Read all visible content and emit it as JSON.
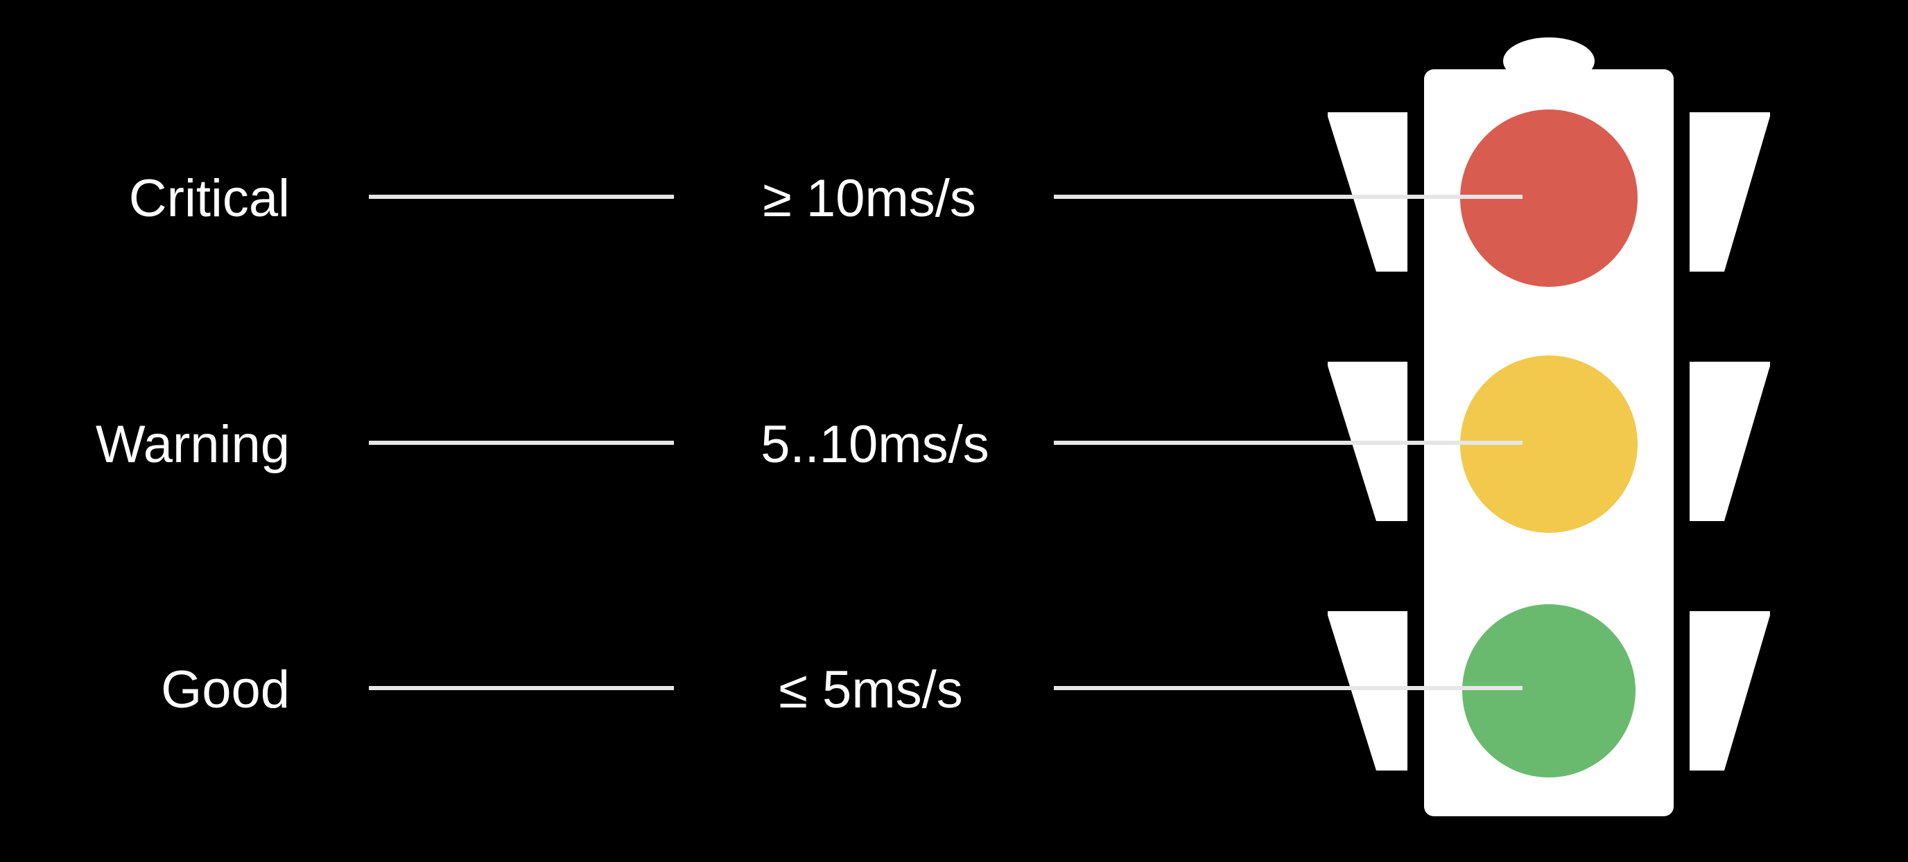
{
  "background_color": "#000000",
  "levels": [
    {
      "name": "Critical",
      "threshold": "≥ 10ms/s",
      "color": "#d95c50"
    },
    {
      "name": "Warning",
      "threshold": "5..10ms/s",
      "color": "#f2c94c"
    },
    {
      "name": "Good",
      "threshold": "≤ 5ms/s",
      "color": "#69ba6e"
    }
  ],
  "traffic_light": {
    "body_color": "#ffffff",
    "icon": "traffic-light-icon"
  }
}
